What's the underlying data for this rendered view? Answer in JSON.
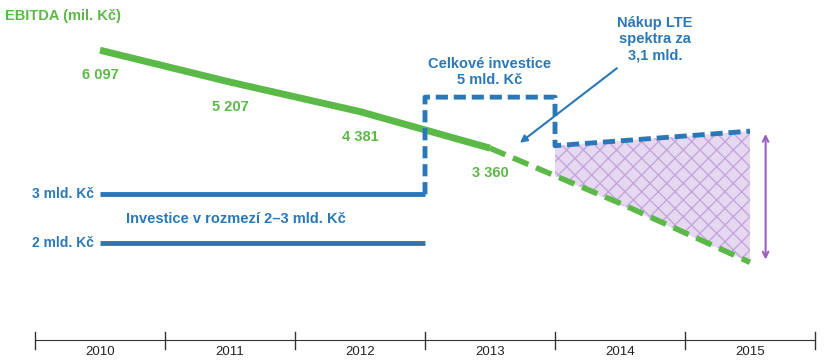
{
  "chart_data": {
    "type": "line",
    "title": "EBITDA (mil. Kč)",
    "categories": [
      "2010",
      "2011",
      "2012",
      "2013",
      "2014",
      "2015"
    ],
    "ylim": [
      -2000,
      7500
    ],
    "y2lim": [
      0,
      7
    ],
    "tick_labels": "x",
    "grid": false,
    "series": [
      {
        "values": [
          6097,
          5207,
          4381,
          3360,
          null,
          null
        ],
        "value_labels": [
          "6 097",
          "5 207",
          "4 381",
          "3 360",
          null,
          null
        ],
        "data_labels": true,
        "color": "#5bb947",
        "line_style": "solid"
      },
      {
        "values": [
          null,
          null,
          null,
          3360,
          1820,
          170
        ],
        "color": "#5bb947",
        "line_style": "dashed"
      },
      {
        "name": "3 mld. Kč",
        "axis": "y2",
        "values": [
          3,
          3,
          3,
          null,
          null,
          null
        ],
        "color": "#2a78b8",
        "line_style": "solid"
      },
      {
        "name": "2 mld. Kč",
        "axis": "y2",
        "values": [
          2,
          2,
          2,
          null,
          null,
          null
        ],
        "color": "#2a78b8",
        "line_style": "solid"
      },
      {
        "name": "Celkové investice\n5 mld. Kč",
        "axis": "y2",
        "values": [
          null,
          null,
          null,
          5,
          4.0,
          4.3
        ],
        "color": "#2a78b8",
        "line_style": "dashed"
      }
    ],
    "annotations": [
      "Investice v rozmezí 2–3 mld. Kč",
      "Nákup LTE\nspektra za\n3,1 mld."
    ]
  }
}
